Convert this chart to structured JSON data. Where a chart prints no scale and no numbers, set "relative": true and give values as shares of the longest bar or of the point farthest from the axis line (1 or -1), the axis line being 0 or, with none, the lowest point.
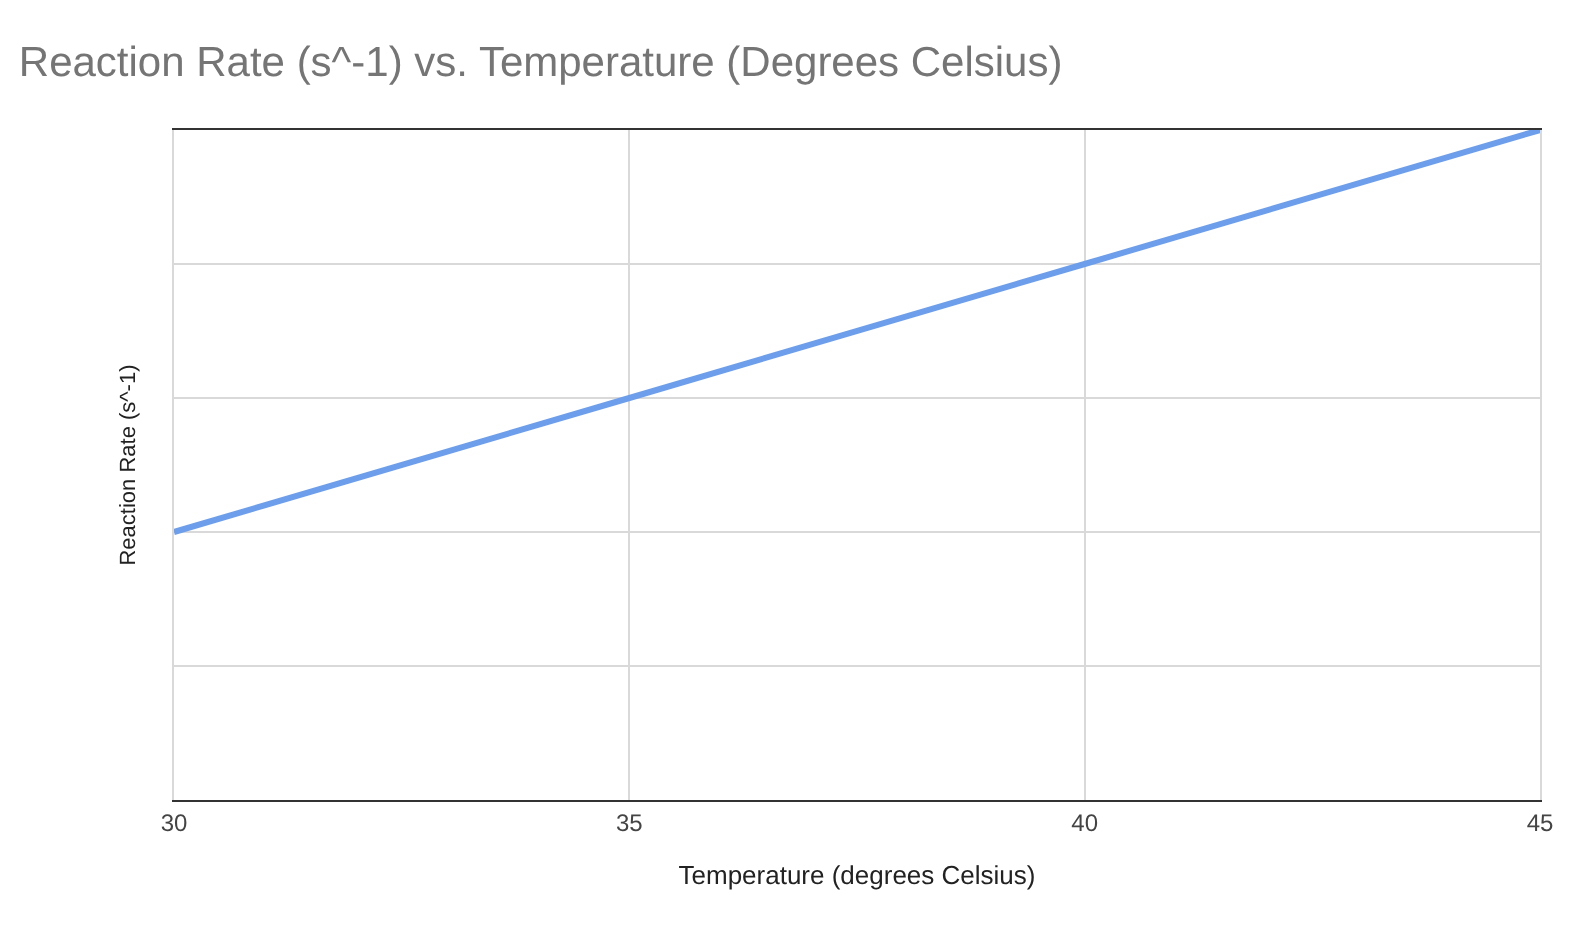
{
  "chart_data": {
    "type": "line",
    "title": "Reaction Rate (s^-1) vs. Temperature (Degrees Celsius)",
    "xlabel": "Temperature (degrees Celsius)",
    "ylabel": "Reaction Rate (s^-1)",
    "x": [
      30,
      35,
      40,
      45
    ],
    "xlim": [
      30,
      45
    ],
    "xticks": [
      30,
      35,
      40,
      45
    ],
    "relative": true,
    "grid": true,
    "series": [
      {
        "color": "#6d9eeb",
        "values": [
          0.4,
          0.6,
          0.8,
          1.0
        ]
      }
    ]
  }
}
